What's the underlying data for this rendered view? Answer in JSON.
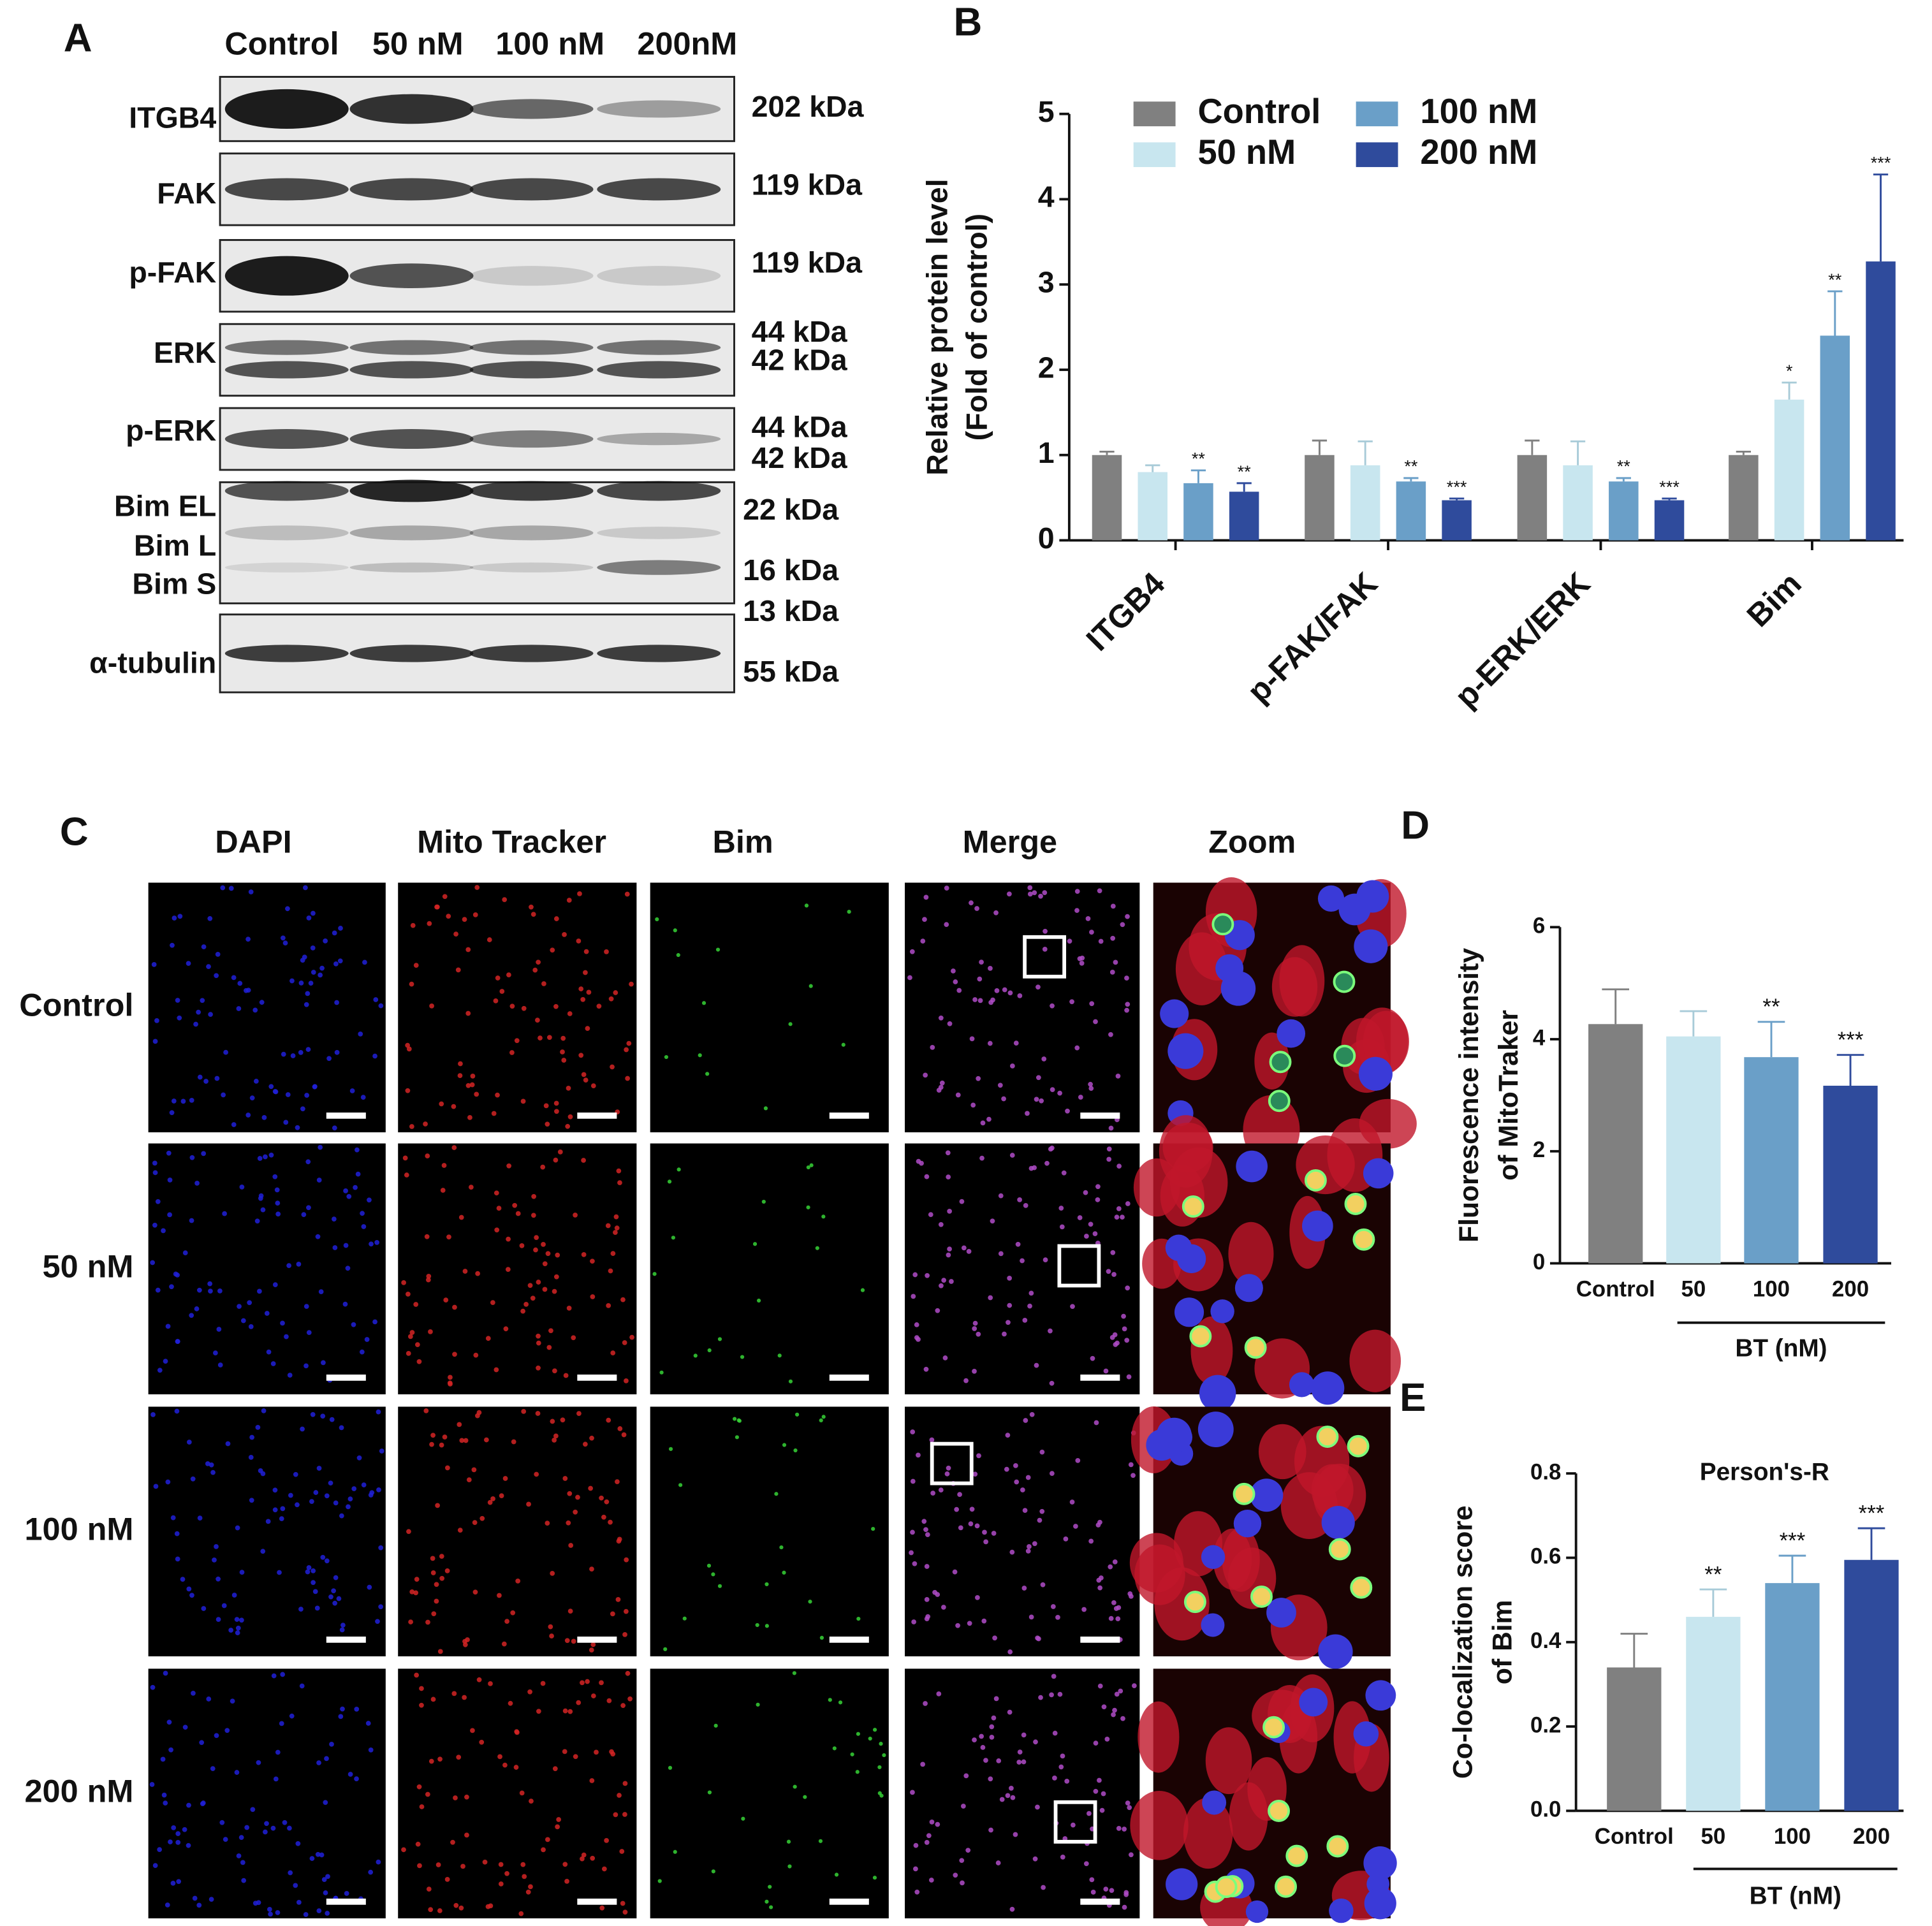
{
  "panel_letters": [
    "A",
    "B",
    "C",
    "D",
    "E"
  ],
  "blot": {
    "lanes": [
      "Control",
      "50 nM",
      "100 nM",
      "200nM"
    ],
    "rows": [
      {
        "labels": [
          "ITGB4"
        ],
        "kda": [
          "202 kDa"
        ]
      },
      {
        "labels": [
          "FAK"
        ],
        "kda": [
          "119 kDa"
        ]
      },
      {
        "labels": [
          "p-FAK"
        ],
        "kda": [
          "119 kDa"
        ]
      },
      {
        "labels": [
          "ERK"
        ],
        "kda": [
          "44 kDa",
          "42 kDa"
        ]
      },
      {
        "labels": [
          "p-ERK"
        ],
        "kda": [
          "44 kDa",
          "42 kDa"
        ]
      },
      {
        "labels": [
          "Bim EL",
          "Bim L",
          "Bim S"
        ],
        "kda": [
          "22 kDa",
          "16 kDa",
          "13 kDa"
        ]
      },
      {
        "labels": [
          "α-tubulin"
        ],
        "kda": [
          "55 kDa"
        ]
      }
    ]
  },
  "microscopy": {
    "columns": [
      "DAPI",
      "Mito Tracker",
      "Bim",
      "Merge",
      "Zoom"
    ],
    "rows": [
      "Control",
      "50 nM",
      "100 nM",
      "200 nM"
    ]
  },
  "chart_data": [
    {
      "type": "bar",
      "ylabel": [
        "Relative protein level",
        "(Fold of control)"
      ],
      "categories": [
        "ITGB4",
        "p-FAK/FAK",
        "p-ERK/ERK",
        "Bim"
      ],
      "series": [
        {
          "name": "Control",
          "color": "#808080",
          "values": [
            1.0,
            1.0,
            1.0,
            1.0
          ],
          "errors": [
            0.04,
            0.17,
            0.17,
            0.04
          ],
          "significance": [
            null,
            null,
            null,
            null
          ]
        },
        {
          "name": "50 nM",
          "color": "#c8e6ef",
          "values": [
            0.8,
            0.88,
            0.88,
            1.65
          ],
          "errors": [
            0.08,
            0.28,
            0.28,
            0.2
          ],
          "significance": [
            null,
            null,
            null,
            "*"
          ]
        },
        {
          "name": "100 nM",
          "color": "#6a9fc8",
          "values": [
            0.67,
            0.69,
            0.69,
            2.4
          ],
          "errors": [
            0.15,
            0.04,
            0.04,
            0.52
          ],
          "significance": [
            "**",
            "**",
            "**",
            "**"
          ]
        },
        {
          "name": "200 nM",
          "color": "#2f4b9c",
          "values": [
            0.57,
            0.47,
            0.47,
            3.27
          ],
          "errors": [
            0.1,
            0.02,
            0.02,
            1.02
          ],
          "significance": [
            "**",
            "***",
            "***",
            "***"
          ]
        }
      ],
      "ylim": [
        0,
        5
      ],
      "yticks": [
        0,
        1,
        2,
        3,
        4,
        5
      ],
      "legend": "top-left"
    },
    {
      "type": "bar",
      "ylabel": [
        "Fluorescence intensity",
        "of MitoTraker"
      ],
      "xlabel": "BT (nM)",
      "categories": [
        "Control",
        "50",
        "100",
        "200"
      ],
      "values": [
        4.27,
        4.05,
        3.68,
        3.17
      ],
      "errors": [
        0.62,
        0.45,
        0.63,
        0.55
      ],
      "significance": [
        null,
        null,
        "**",
        "***"
      ],
      "colors": [
        "#808080",
        "#c8e6ef",
        "#6a9fc8",
        "#2f4b9c"
      ],
      "ylim": [
        0,
        6
      ],
      "yticks": [
        0,
        2,
        4,
        6
      ]
    },
    {
      "type": "bar",
      "title": "Person's-R",
      "ylabel": [
        "Co-localization score",
        "of Bim"
      ],
      "xlabel": "BT (nM)",
      "categories": [
        "Control",
        "50",
        "100",
        "200"
      ],
      "values": [
        0.34,
        0.46,
        0.54,
        0.595
      ],
      "errors": [
        0.08,
        0.065,
        0.065,
        0.075
      ],
      "significance": [
        null,
        "**",
        "***",
        "***"
      ],
      "colors": [
        "#808080",
        "#c8e6ef",
        "#6a9fc8",
        "#2f4b9c"
      ],
      "ylim": [
        0,
        0.8
      ],
      "yticks": [
        {
          "value": 0,
          "label": "0.0"
        },
        0.2,
        0.4,
        0.6,
        0.8
      ]
    }
  ]
}
